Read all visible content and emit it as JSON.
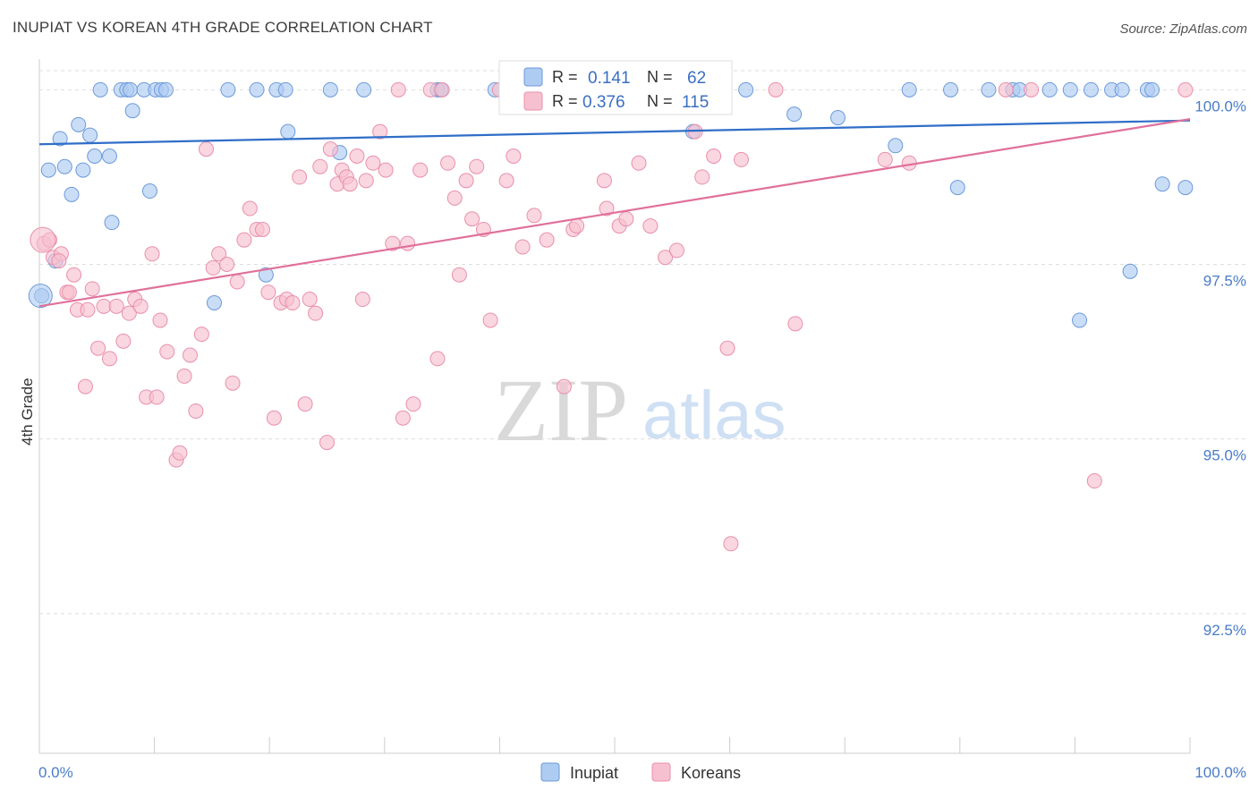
{
  "title": "INUPIAT VS KOREAN 4TH GRADE CORRELATION CHART",
  "source": "Source: ZipAtlas.com",
  "watermark": {
    "part1": "ZIP",
    "part2": "atlas"
  },
  "colors": {
    "inupiat_fill": "#aecbf2",
    "inupiat_stroke": "#6c9ad8",
    "inupiat_line": "#2f6ec8",
    "koreans_fill": "#f7c0d0",
    "koreans_stroke": "#e890ab",
    "koreans_line": "#e0709a",
    "tick_label": "#4a7cc7",
    "grid": "#dddddd"
  },
  "legend_top": {
    "rows": [
      {
        "r_label": "R = ",
        "r_value": "0.141",
        "n_label": "N = ",
        "n_value": "62"
      },
      {
        "r_label": "R = ",
        "r_value": "0.376",
        "n_label": "N = ",
        "n_value": "115"
      }
    ]
  },
  "legend_bottom": {
    "items": [
      "Inupiat",
      "Koreans"
    ]
  },
  "chart_data": {
    "type": "scatter",
    "title": "INUPIAT VS KOREAN 4TH GRADE CORRELATION CHART",
    "xlabel": "",
    "ylabel": "4th Grade",
    "xlim": [
      0,
      100
    ],
    "ylim": [
      90.5,
      100.35
    ],
    "x_tick_labels": [
      "0.0%",
      "100.0%"
    ],
    "y_ticks": [
      92.5,
      95.0,
      97.5,
      100.0
    ],
    "y_tick_labels": [
      "92.5%",
      "95.0%",
      "97.5%",
      "100.0%"
    ],
    "grid": true,
    "legend_position": "top-center",
    "series": [
      {
        "name": "Inupiat",
        "r": 0.141,
        "n": 62,
        "trend": [
          [
            0,
            99.22
          ],
          [
            100,
            99.56
          ]
        ],
        "points": [
          [
            0.2,
            97.05
          ],
          [
            0.8,
            98.85
          ],
          [
            1.4,
            97.55
          ],
          [
            1.8,
            99.3
          ],
          [
            2.2,
            98.9
          ],
          [
            2.8,
            98.5
          ],
          [
            3.4,
            99.5
          ],
          [
            3.8,
            98.85
          ],
          [
            4.4,
            99.35
          ],
          [
            4.8,
            99.05
          ],
          [
            5.3,
            100.0
          ],
          [
            6.1,
            99.05
          ],
          [
            6.3,
            98.1
          ],
          [
            7.1,
            100.0
          ],
          [
            7.6,
            100.0
          ],
          [
            7.9,
            100.0
          ],
          [
            8.1,
            99.7
          ],
          [
            9.1,
            100.0
          ],
          [
            9.6,
            98.55
          ],
          [
            10.1,
            100.0
          ],
          [
            10.6,
            100.0
          ],
          [
            11.0,
            100.0
          ],
          [
            15.2,
            96.95
          ],
          [
            16.4,
            100.0
          ],
          [
            18.9,
            100.0
          ],
          [
            19.7,
            97.35
          ],
          [
            20.6,
            100.0
          ],
          [
            21.4,
            100.0
          ],
          [
            21.6,
            99.4
          ],
          [
            25.3,
            100.0
          ],
          [
            26.1,
            99.1
          ],
          [
            28.2,
            100.0
          ],
          [
            34.6,
            100.0
          ],
          [
            34.9,
            100.0
          ],
          [
            39.6,
            100.0
          ],
          [
            47.2,
            100.0
          ],
          [
            51.4,
            100.0
          ],
          [
            56.2,
            100.0
          ],
          [
            56.4,
            100.0
          ],
          [
            56.8,
            99.4
          ],
          [
            58.5,
            100.0
          ],
          [
            61.4,
            100.0
          ],
          [
            65.6,
            99.65
          ],
          [
            69.4,
            99.6
          ],
          [
            74.4,
            99.2
          ],
          [
            75.6,
            100.0
          ],
          [
            79.2,
            100.0
          ],
          [
            79.8,
            98.6
          ],
          [
            82.5,
            100.0
          ],
          [
            84.6,
            100.0
          ],
          [
            85.2,
            100.0
          ],
          [
            87.8,
            100.0
          ],
          [
            89.6,
            100.0
          ],
          [
            90.4,
            96.7
          ],
          [
            91.4,
            100.0
          ],
          [
            93.2,
            100.0
          ],
          [
            94.1,
            100.0
          ],
          [
            94.8,
            97.4
          ],
          [
            96.3,
            100.0
          ],
          [
            96.7,
            100.0
          ],
          [
            97.6,
            98.65
          ],
          [
            99.6,
            98.6
          ]
        ]
      },
      {
        "name": "Koreans",
        "r": 0.376,
        "n": 115,
        "trend": [
          [
            0,
            96.9
          ],
          [
            100,
            99.58
          ]
        ],
        "points": [
          [
            0.4,
            97.8
          ],
          [
            1.2,
            97.6
          ],
          [
            1.9,
            97.65
          ],
          [
            2.4,
            97.1
          ],
          [
            2.6,
            97.1
          ],
          [
            3.0,
            97.35
          ],
          [
            3.3,
            96.85
          ],
          [
            4.0,
            95.75
          ],
          [
            4.2,
            96.85
          ],
          [
            4.6,
            97.15
          ],
          [
            5.1,
            96.3
          ],
          [
            5.6,
            96.9
          ],
          [
            6.1,
            96.15
          ],
          [
            6.7,
            96.9
          ],
          [
            7.3,
            96.4
          ],
          [
            7.8,
            96.8
          ],
          [
            8.3,
            97.0
          ],
          [
            8.8,
            96.9
          ],
          [
            9.3,
            95.6
          ],
          [
            9.8,
            97.65
          ],
          [
            10.2,
            95.6
          ],
          [
            10.5,
            96.7
          ],
          [
            11.1,
            96.25
          ],
          [
            11.9,
            94.7
          ],
          [
            12.2,
            94.8
          ],
          [
            12.6,
            95.9
          ],
          [
            13.1,
            96.2
          ],
          [
            13.6,
            95.4
          ],
          [
            14.1,
            96.5
          ],
          [
            14.5,
            99.15
          ],
          [
            15.1,
            97.45
          ],
          [
            15.6,
            97.65
          ],
          [
            16.3,
            97.5
          ],
          [
            16.8,
            95.8
          ],
          [
            17.2,
            97.25
          ],
          [
            17.8,
            97.85
          ],
          [
            18.3,
            98.3
          ],
          [
            18.9,
            98.0
          ],
          [
            19.4,
            98.0
          ],
          [
            19.9,
            97.1
          ],
          [
            20.4,
            95.3
          ],
          [
            21.0,
            96.95
          ],
          [
            21.5,
            97.0
          ],
          [
            22.0,
            96.95
          ],
          [
            22.6,
            98.75
          ],
          [
            23.1,
            95.5
          ],
          [
            23.5,
            97.0
          ],
          [
            24.0,
            96.8
          ],
          [
            24.4,
            98.9
          ],
          [
            25.0,
            94.95
          ],
          [
            25.3,
            99.15
          ],
          [
            25.9,
            98.65
          ],
          [
            26.3,
            98.85
          ],
          [
            26.7,
            98.75
          ],
          [
            27.0,
            98.65
          ],
          [
            27.6,
            99.05
          ],
          [
            28.1,
            97.0
          ],
          [
            28.4,
            98.7
          ],
          [
            29.0,
            98.95
          ],
          [
            29.6,
            99.4
          ],
          [
            30.1,
            98.85
          ],
          [
            30.7,
            97.8
          ],
          [
            31.2,
            100.0
          ],
          [
            31.6,
            95.3
          ],
          [
            32.0,
            97.8
          ],
          [
            32.5,
            95.5
          ],
          [
            33.1,
            98.85
          ],
          [
            34.0,
            100.0
          ],
          [
            34.6,
            96.15
          ],
          [
            35.0,
            100.0
          ],
          [
            35.5,
            98.95
          ],
          [
            36.1,
            98.45
          ],
          [
            36.5,
            97.35
          ],
          [
            37.1,
            98.7
          ],
          [
            37.6,
            98.15
          ],
          [
            38.0,
            98.9
          ],
          [
            38.6,
            98.0
          ],
          [
            39.2,
            96.7
          ],
          [
            40.0,
            100.0
          ],
          [
            40.6,
            98.7
          ],
          [
            41.2,
            99.05
          ],
          [
            42.0,
            97.75
          ],
          [
            43.0,
            98.2
          ],
          [
            44.1,
            97.85
          ],
          [
            45.0,
            100.0
          ],
          [
            45.6,
            95.75
          ],
          [
            46.4,
            98.0
          ],
          [
            46.7,
            98.05
          ],
          [
            48.0,
            100.0
          ],
          [
            49.1,
            98.7
          ],
          [
            49.3,
            98.3
          ],
          [
            50.4,
            98.05
          ],
          [
            51.0,
            98.15
          ],
          [
            52.1,
            98.95
          ],
          [
            53.1,
            98.05
          ],
          [
            53.9,
            100.0
          ],
          [
            54.4,
            97.6
          ],
          [
            55.4,
            97.7
          ],
          [
            57.0,
            99.4
          ],
          [
            57.6,
            98.75
          ],
          [
            58.6,
            99.05
          ],
          [
            59.8,
            96.3
          ],
          [
            60.1,
            93.5
          ],
          [
            61.0,
            99.0
          ],
          [
            64.0,
            100.0
          ],
          [
            65.7,
            96.65
          ],
          [
            73.5,
            99.0
          ],
          [
            75.6,
            98.95
          ],
          [
            84.0,
            100.0
          ],
          [
            86.2,
            100.0
          ],
          [
            91.7,
            94.4
          ],
          [
            99.6,
            100.0
          ],
          [
            0.9,
            97.85
          ],
          [
            1.7,
            97.55
          ],
          [
            56.6,
            100.0
          ]
        ]
      }
    ]
  }
}
